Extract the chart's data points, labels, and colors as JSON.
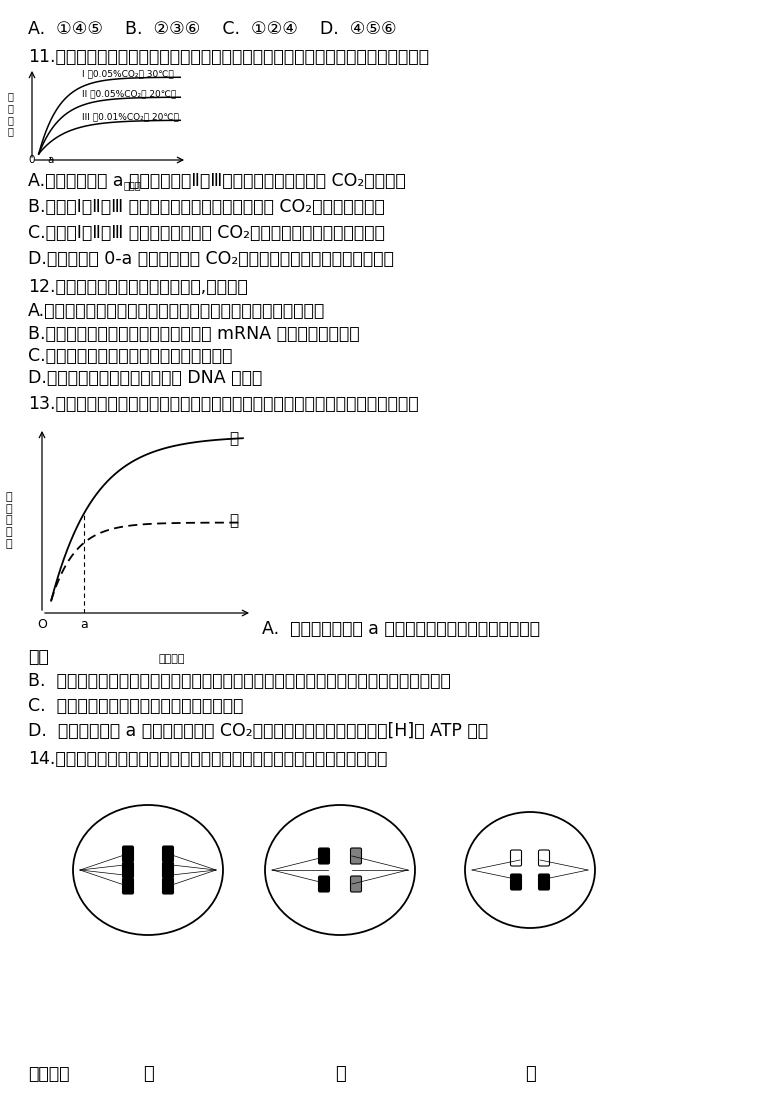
{
  "bg_color": "#ffffff",
  "text_color": "#000000",
  "line1": "A.  ①④⑤    B.  ②③⑥    C.  ①②④    D.  ④⑤⑥",
  "q11_text": "11.科学家研究环境因素对某植物光合速率的影响如下图，据图判断下列叙述错误的是",
  "q11_A": "A.　光强度超过 a 时，造成曲线Ⅱ和Ⅲ光合速率差异的原因是 CO₂浓度不同",
  "q11_B": "B.　曲线Ⅰ、Ⅱ、Ⅲ 表明，光合速率受光强、温度和 CO₂浓度的综合影响",
  "q11_C": "C.　曲线Ⅰ、Ⅱ、Ⅲ 表明，改变温度和 CO₂浓度对植物的光饱和点有影响",
  "q11_D": "D.　光强度为 0-a 时，适当提高 CO₂浓度和温度对光合速率有促进作用",
  "q12_text": "12.下列与细胞生命历程有关的叙述,正确的是",
  "q12_A": "A.人的胚胎发育过程中，尾的消失是通过细胞编程性死亡实现的",
  "q12_B": "B.造血干细胞分化形成的多种细胞中， mRNA 的种类和数量相同",
  "q12_C": "C.原癌基因和抑癌基因在正常细胞中不表达",
  "q12_D": "D.衰老细胞内染色质固缩有利于 DNA 的复制",
  "q13_text": "13.甲、乙两种植物净光合速率随光照强度的变化趋势如图所示。下列说法正确的是",
  "q13_A": "A.  当光照强度低于 a 时，甲植物积累的有机物比乙植物的多",
  "q13_B": "B.  甲、乙两种植物单独种植时，若种植密度过大，则净光合速率下降幅度较大的是植物甲",
  "q13_C": "C.  甲、乙两种植物中，甲的呼吸速率低于乙",
  "q13_D": "D.  若光照强度为 a 时降低甲植物的 CO₂浓度，则短时间内叶绻理中的[H]和 ATP 减少",
  "q14_text": "14.下图是一个二倍体动物的几个细胞分裂示意图，据图所作的判断正确的是",
  "q13_A_right": "A.  当光照强度低于 a 时，甲植物积累的有机物比乙植物",
  "q13_A_cont": "的多",
  "footer": "高三生物",
  "jia": "甲",
  "yi": "乙",
  "bing": "丙",
  "curve_label_I": "I （0.05%CO₂， 30℃）",
  "curve_label_II": "II （0.05%CO₂， 20℃）",
  "curve_label_III": "III （0.01%CO₂， 20℃）",
  "ylabel_q11": "光\n合\n速\n率",
  "xlabel_q11": "光强度",
  "ylabel_q13": "净\n光\n合\n速\n率",
  "xlabel_q13": "光照强度"
}
